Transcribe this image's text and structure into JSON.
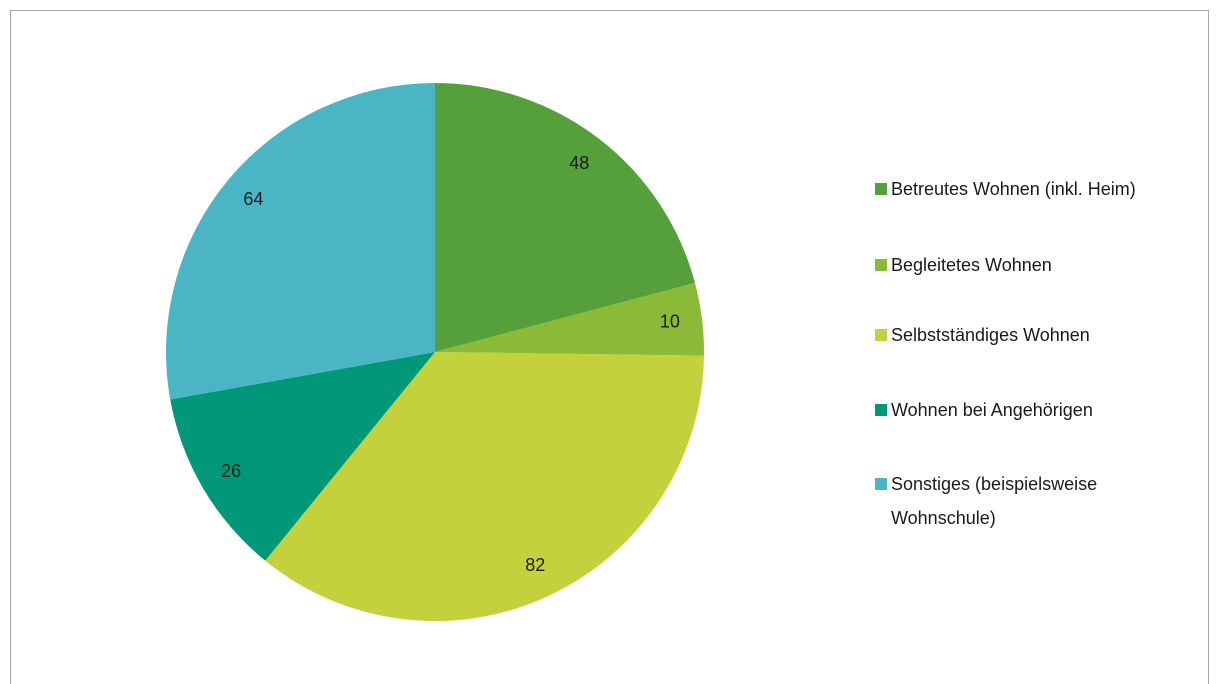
{
  "chart_data": {
    "type": "pie",
    "categories": [
      "Betreutes Wohnen (inkl. Heim)",
      "Begleitetes Wohnen",
      "Selbstständiges Wohnen",
      "Wohnen bei Angehörigen",
      "Sonstiges (beispielsweise Wohnschule)"
    ],
    "values": [
      48,
      10,
      82,
      26,
      64
    ],
    "colors": [
      "#56a03b",
      "#8bba38",
      "#c2d13c",
      "#009878",
      "#4bb5c6"
    ],
    "legend": "right"
  }
}
